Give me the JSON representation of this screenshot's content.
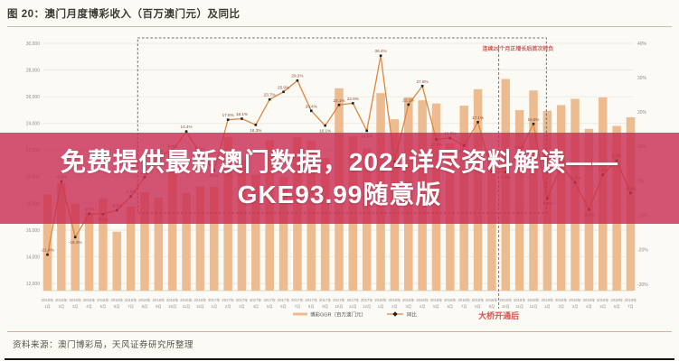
{
  "header": {
    "title": "图 20：澳门月度博彩收入（百万澳门元）及同比"
  },
  "overlay": {
    "line1": "免费提供最新澳门数据，2024详尽资料解读——",
    "line2": "GKE93.99随意版"
  },
  "annotations": {
    "box_note": "连续29个月正增长后首次转负",
    "box_x_range": [
      "2016年8月",
      "2018年12月"
    ],
    "bridge_note": "大桥开通后",
    "bridge_vline_x": "2018年10月"
  },
  "source": "资料来源：澳门博彩局，天风证券研究所整理",
  "colors": {
    "bar": "#ecbb90",
    "line": "#e0863f",
    "marker": "#222222",
    "point_label": "#8a4a3a",
    "grid": "#e7e6e1",
    "axis_label": "#8f8d87",
    "axis_line": "#c9c8c2",
    "box": "#6a6a66",
    "red": "#d9534f",
    "overlay_bg": "#c92a51",
    "title": "#3e3a33",
    "source_text": "#57534b"
  },
  "chart_data": {
    "type": "bar+line",
    "title": "澳门月度博彩收入（百万澳门元）及同比",
    "grid": true,
    "legend_position": "bottom",
    "left_axis": {
      "min": 12000,
      "max": 30000,
      "step": 2000
    },
    "right_axis": {
      "min": -30,
      "max": 40,
      "step": 10,
      "suffix": "%"
    },
    "x": [
      "2016年1月",
      "2016年2月",
      "2016年3月",
      "2016年4月",
      "2016年5月",
      "2016年6月",
      "2016年7月",
      "2016年8月",
      "2016年9月",
      "2016年10月",
      "2016年11月",
      "2016年12月",
      "2017年1月",
      "2017年2月",
      "2017年3月",
      "2017年4月",
      "2017年5月",
      "2017年6月",
      "2017年7月",
      "2017年8月",
      "2017年9月",
      "2017年10月",
      "2017年11月",
      "2017年12月",
      "2018年1月",
      "2018年2月",
      "2018年3月",
      "2018年4月",
      "2018年5月",
      "2018年6月",
      "2018年7月",
      "2018年8月",
      "2018年9月",
      "2018年10月",
      "2018年11月",
      "2018年12月",
      "2019年1月",
      "2019年2月",
      "2019年3月",
      "2019年4月",
      "2019年5月",
      "2019年6月",
      "2019年7月"
    ],
    "series": [
      {
        "name": "博彩GGR（百万澳门元）",
        "type": "bar",
        "axis": "left",
        "values": [
          18674,
          19521,
          17980,
          17340,
          18389,
          15885,
          17774,
          18837,
          18430,
          21805,
          18786,
          19279,
          19255,
          22992,
          21232,
          20164,
          22744,
          19992,
          22964,
          22676,
          21408,
          26630,
          23038,
          22120,
          26265,
          24312,
          25952,
          25730,
          25488,
          22490,
          25327,
          26560,
          21952,
          27328,
          24995,
          26468,
          24942,
          25370,
          25840,
          23588,
          25952,
          23812,
          24453
        ]
      },
      {
        "name": "同比",
        "type": "line",
        "axis": "right",
        "unit": "%",
        "values": [
          -21.4,
          -0.1,
          -16.3,
          -9.5,
          -9.6,
          -8.5,
          -4.5,
          1.1,
          7.4,
          8.8,
          14.4,
          8.0,
          3.1,
          17.8,
          18.1,
          16.3,
          23.7,
          25.9,
          29.2,
          20.4,
          16.1,
          22.1,
          22.6,
          14.6,
          36.4,
          5.7,
          22.2,
          27.6,
          12.1,
          12.5,
          10.3,
          17.1,
          2.8,
          2.6,
          8.5,
          16.6,
          -5.0,
          4.4,
          -0.4,
          -8.3,
          1.8,
          5.9,
          -3.5
        ]
      }
    ]
  }
}
